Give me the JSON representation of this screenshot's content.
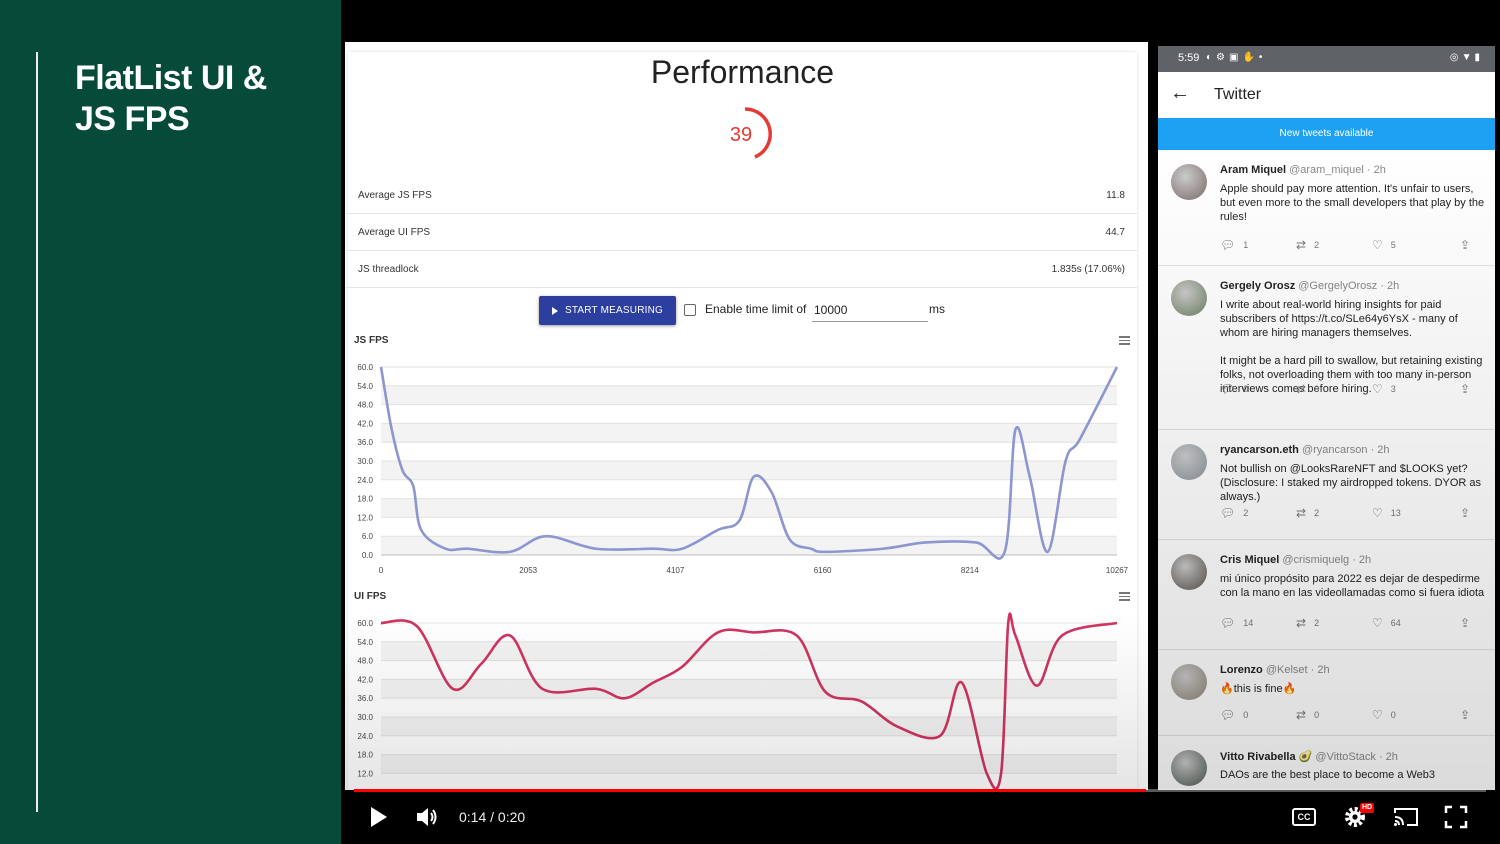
{
  "slide": {
    "title": "FlatList UI & JS FPS"
  },
  "performance": {
    "title": "Performance",
    "gauge_value": "39",
    "stats": [
      {
        "label": "Average JS FPS",
        "value": "11.8"
      },
      {
        "label": "Average UI FPS",
        "value": "44.7"
      },
      {
        "label": "JS threadlock",
        "value": "1.835s (17.06%)"
      }
    ],
    "start_button": "START MEASURING",
    "checkbox_label": "Enable time limit of",
    "time_limit_value": "10000",
    "time_unit": "ms"
  },
  "chart_data": [
    {
      "type": "line",
      "title": "JS FPS",
      "color": "#8c96cf",
      "yticks": [
        "60.0",
        "54.0",
        "48.0",
        "42.0",
        "36.0",
        "30.0",
        "24.0",
        "18.0",
        "12.0",
        "6.0",
        "0.0"
      ],
      "xticks": [
        "0",
        "2053",
        "4107",
        "6160",
        "8214",
        "10267"
      ],
      "ylim": [
        0,
        60
      ],
      "xlim": [
        0,
        10267
      ],
      "x": [
        0,
        150,
        300,
        450,
        560,
        900,
        1200,
        1800,
        2300,
        3000,
        3800,
        4200,
        4700,
        5000,
        5200,
        5450,
        5700,
        6000,
        6200,
        7000,
        7600,
        8300,
        8700,
        8850,
        9050,
        9300,
        9550,
        9750,
        10267
      ],
      "y": [
        60,
        40,
        27,
        22,
        8,
        2,
        2,
        1,
        6,
        2,
        2,
        2,
        8,
        11,
        25,
        20,
        5,
        2,
        1,
        2,
        4,
        4,
        1,
        40,
        25,
        1,
        30,
        37,
        60
      ]
    },
    {
      "type": "line",
      "title": "UI FPS",
      "color": "#d03461",
      "yticks": [
        "60.0",
        "54.0",
        "48.0",
        "42.0",
        "36.0",
        "30.0",
        "24.0",
        "18.0",
        "12.0"
      ],
      "ylim": [
        12,
        60
      ],
      "xlim": [
        0,
        10267
      ],
      "x": [
        0,
        500,
        1000,
        1400,
        1800,
        2250,
        3000,
        3400,
        3800,
        4200,
        4700,
        5200,
        5800,
        6200,
        6700,
        7200,
        7800,
        8100,
        8450,
        8650,
        8750,
        8850,
        9150,
        9500,
        10267
      ],
      "y": [
        60,
        59,
        39,
        47,
        56,
        39,
        39,
        36,
        41,
        46,
        57,
        57,
        56,
        38,
        35,
        27,
        24,
        41,
        12,
        12,
        60,
        56,
        40,
        56,
        60
      ]
    }
  ],
  "phone": {
    "status_time": "5:59",
    "app_title": "Twitter",
    "banner": "New tweets available",
    "tweets": [
      {
        "name": "Aram Miquel",
        "handle": "@aram_miquel · 2h",
        "text": "Apple should pay more attention. It's unfair to users, but even more to the small developers that play by the rules!",
        "replies": "1",
        "retweets": "2",
        "likes": "5",
        "avatar_color": "#7a6a6a"
      },
      {
        "name": "Gergely Orosz",
        "handle": "@GergelyOrosz · 2h",
        "text": "I write about real-world hiring insights for paid subscribers of https://t.co/SLe64y6YsX - many of whom are hiring managers themselves.\n\nIt might be a hard pill to swallow, but retaining existing folks, not overloading them with too many in-person interviews comes before hiring.",
        "replies": "0",
        "retweets": "0",
        "likes": "3",
        "avatar_color": "#6e7f63"
      },
      {
        "name": "ryancarson.eth",
        "handle": "@ryancarson · 2h",
        "text": "Not bullish on @LooksRareNFT and $LOOKS yet? (Disclosure: I staked my airdropped tokens. DYOR as always.)",
        "replies": "2",
        "retweets": "2",
        "likes": "13",
        "avatar_color": "#8a949a"
      },
      {
        "name": "Cris Miquel",
        "handle": "@crismiquelg · 2h",
        "text": "mi único propósito para 2022 es dejar de despedirme con la mano en las videollamadas como si fuera idiota",
        "replies": "14",
        "retweets": "2",
        "likes": "64",
        "avatar_color": "#5a5550"
      },
      {
        "name": "Lorenzo",
        "handle": "@Kelset · 2h",
        "text": "🔥this is fine🔥",
        "replies": "0",
        "retweets": "0",
        "likes": "0",
        "avatar_color": "#8f8578"
      },
      {
        "name": "Vitto Rivabella 🥑",
        "handle": "@VittoStack · 2h",
        "text": "DAOs are the best place to become a Web3",
        "replies": "",
        "retweets": "",
        "likes": "",
        "avatar_color": "#4f5a52"
      }
    ]
  },
  "player": {
    "time": "0:14 / 0:20",
    "progress": 0.7,
    "cc_label": "CC",
    "hd_badge": "HD"
  },
  "colors": {
    "slide_bg": "#064a3a",
    "accent_blue": "#2c3e9e",
    "twitter_blue": "#1da1f2",
    "progress_red": "#ff0000"
  }
}
